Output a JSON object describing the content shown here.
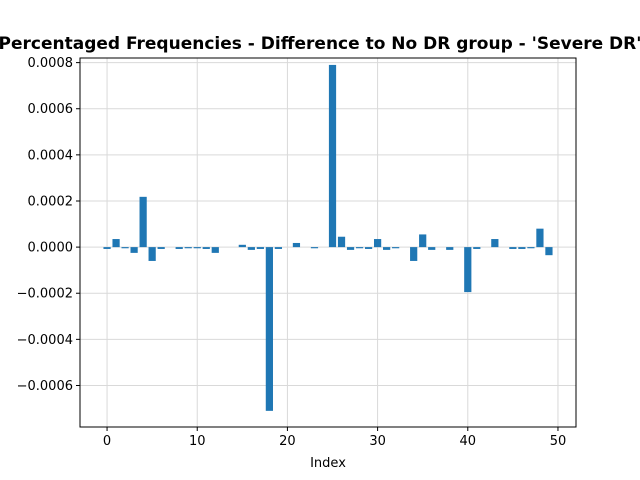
{
  "chart_data": {
    "type": "bar",
    "title": "Percentaged Frequencies - Difference to No DR group - 'Severe DR'",
    "xlabel": "Index",
    "ylabel": "",
    "xlim": [
      -3,
      52
    ],
    "ylim": [
      -0.00078,
      0.00082
    ],
    "grid": true,
    "bar_color": "#1f77b4",
    "x_ticks": [
      0,
      10,
      20,
      30,
      40,
      50
    ],
    "x_tick_labels": [
      "0",
      "10",
      "20",
      "30",
      "40",
      "50"
    ],
    "y_ticks": [
      -0.0006,
      -0.0004,
      -0.0002,
      0.0,
      0.0002,
      0.0004,
      0.0006,
      0.0008
    ],
    "y_tick_labels": [
      "−0.0006",
      "−0.0004",
      "−0.0002",
      "0.0000",
      "0.0002",
      "0.0004",
      "0.0006",
      "0.0008"
    ],
    "x": [
      0,
      1,
      2,
      3,
      4,
      5,
      6,
      7,
      8,
      9,
      10,
      11,
      12,
      13,
      14,
      15,
      16,
      17,
      18,
      19,
      20,
      21,
      22,
      23,
      24,
      25,
      26,
      27,
      28,
      29,
      30,
      31,
      32,
      33,
      34,
      35,
      36,
      37,
      38,
      39,
      40,
      41,
      42,
      43,
      44,
      45,
      46,
      47,
      48,
      49
    ],
    "values": [
      -8e-06,
      3.5e-05,
      -5e-06,
      -2.5e-05,
      0.000218,
      -6e-05,
      -8e-06,
      0.0,
      -8e-06,
      -5e-06,
      -5e-06,
      -8e-06,
      -2.5e-05,
      0.0,
      0.0,
      1e-05,
      -1.2e-05,
      -8e-06,
      -0.00071,
      -8e-06,
      0.0,
      1.8e-05,
      0.0,
      -5e-06,
      0.0,
      0.00079,
      4.5e-05,
      -1.2e-05,
      -5e-06,
      -8e-06,
      3.5e-05,
      -1.2e-05,
      -5e-06,
      0.0,
      -6e-05,
      5.5e-05,
      -1.2e-05,
      0.0,
      -1.2e-05,
      0.0,
      -0.000195,
      -8e-06,
      0.0,
      3.5e-05,
      0.0,
      -8e-06,
      -8e-06,
      -5e-06,
      8e-05,
      -3.5e-05
    ]
  }
}
